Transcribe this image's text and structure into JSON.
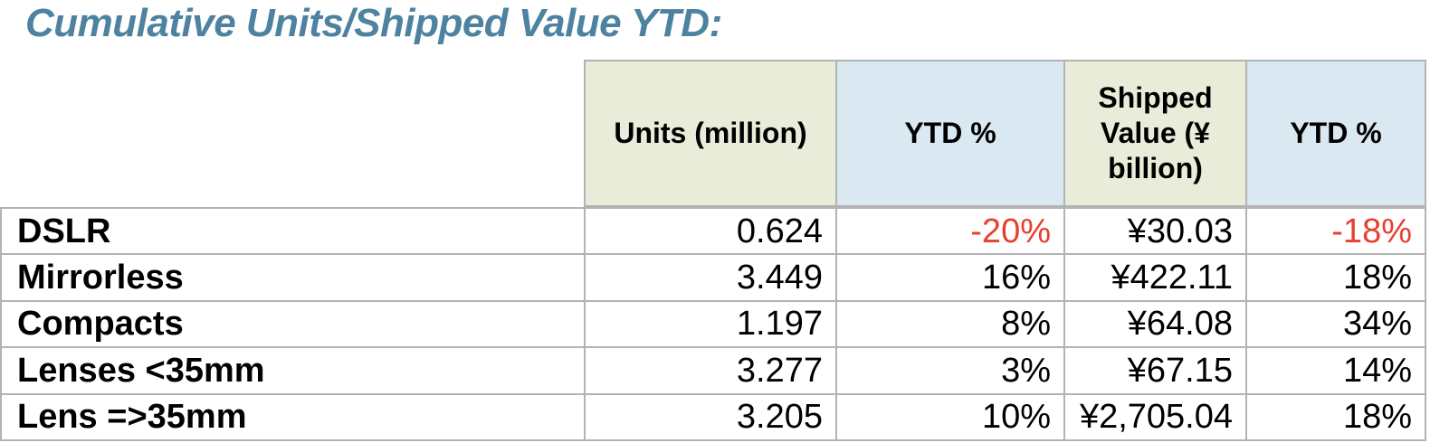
{
  "title": "Cumulative Units/Shipped Value YTD:",
  "table": {
    "headers": {
      "units": "Units (million)",
      "ytd_units": "YTD %",
      "shipped": "Shipped Value (¥ billion)",
      "ytd_shipped": "YTD %"
    },
    "rows": [
      {
        "label": "DSLR",
        "units": "0.624",
        "ytd_units": "-20%",
        "shipped": "¥30.03",
        "ytd_shipped": "-18%"
      },
      {
        "label": "Mirrorless",
        "units": "3.449",
        "ytd_units": "16%",
        "shipped": "¥422.11",
        "ytd_shipped": "18%"
      },
      {
        "label": "Compacts",
        "units": "1.197",
        "ytd_units": "8%",
        "shipped": "¥64.08",
        "ytd_shipped": "34%"
      },
      {
        "label": "Lenses <35mm",
        "units": "3.277",
        "ytd_units": "3%",
        "shipped": "¥67.15",
        "ytd_shipped": "14%"
      },
      {
        "label": "Lens =>35mm",
        "units": "3.205",
        "ytd_units": "10%",
        "shipped": "¥2,705.04",
        "ytd_shipped": "18%"
      }
    ]
  },
  "colors": {
    "title": "#4d83a1",
    "header_green": "#e8ecd8",
    "header_blue": "#d9e8f1",
    "border": "#b3b3b3",
    "negative": "#e6402e"
  },
  "chart_data": {
    "type": "table",
    "title": "Cumulative Units/Shipped Value YTD:",
    "columns": [
      "",
      "Units (million)",
      "YTD %",
      "Shipped Value (¥ billion)",
      "YTD %"
    ],
    "rows": [
      [
        "DSLR",
        0.624,
        "-20%",
        "¥30.03",
        "-18%"
      ],
      [
        "Mirrorless",
        3.449,
        "16%",
        "¥422.11",
        "18%"
      ],
      [
        "Compacts",
        1.197,
        "8%",
        "¥64.08",
        "34%"
      ],
      [
        "Lenses <35mm",
        3.277,
        "3%",
        "¥67.15",
        "14%"
      ],
      [
        "Lens =>35mm",
        3.205,
        "10%",
        "¥2,705.04",
        "18%"
      ]
    ],
    "notes": "Negative YTD % values rendered in red (#e6402e). Header cells alternate pale green (#e8ecd8) and pale blue (#d9e8f1)."
  }
}
